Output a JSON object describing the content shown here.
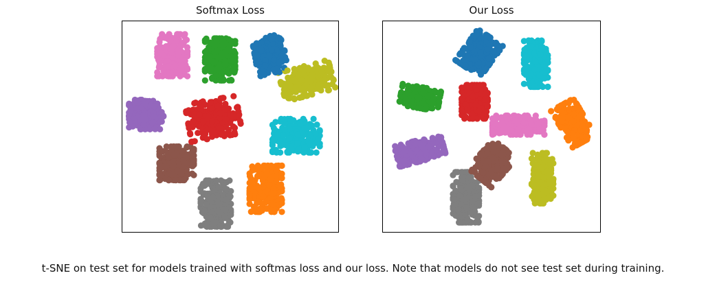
{
  "caption": "t-SNE on test set for models trained with softmas loss and our loss. Note that models do not see test set during training.",
  "palette": [
    "#1f77b4",
    "#ff7f0e",
    "#2ca02c",
    "#d62728",
    "#9467bd",
    "#8c564b",
    "#e377c2",
    "#7f7f7f",
    "#bcbd22",
    "#17becf"
  ],
  "chart_data": [
    {
      "type": "scatter",
      "title": "Softmax Loss",
      "xlabel": "",
      "ylabel": "",
      "grid": false,
      "axis_ticks": false,
      "xlim": [
        0,
        100
      ],
      "ylim": [
        0,
        100
      ],
      "clusters": [
        {
          "class_index": 0,
          "center": [
            68,
            84
          ],
          "spread": [
            7,
            9
          ],
          "angle": 10
        },
        {
          "class_index": 1,
          "center": [
            66,
            21
          ],
          "spread": [
            7.5,
            11
          ],
          "angle": 0
        },
        {
          "class_index": 2,
          "center": [
            45,
            82
          ],
          "spread": [
            7,
            10
          ],
          "angle": 0
        },
        {
          "class_index": 3,
          "center": [
            42,
            54
          ],
          "spread": [
            12,
            9
          ],
          "angle": 10
        },
        {
          "class_index": 4,
          "center": [
            11,
            56
          ],
          "spread": [
            8,
            7
          ],
          "angle": 0
        },
        {
          "class_index": 5,
          "center": [
            25,
            33
          ],
          "spread": [
            8,
            8
          ],
          "angle": 0
        },
        {
          "class_index": 6,
          "center": [
            23,
            84
          ],
          "spread": [
            7,
            10
          ],
          "angle": 0
        },
        {
          "class_index": 7,
          "center": [
            43,
            14
          ],
          "spread": [
            7,
            11
          ],
          "angle": 0
        },
        {
          "class_index": 8,
          "center": [
            85,
            72
          ],
          "spread": [
            12,
            7
          ],
          "angle": 15
        },
        {
          "class_index": 9,
          "center": [
            80,
            46
          ],
          "spread": [
            11,
            8
          ],
          "angle": 0
        }
      ]
    },
    {
      "type": "scatter",
      "title": "Our Loss",
      "xlabel": "",
      "ylabel": "",
      "grid": false,
      "axis_ticks": false,
      "xlim": [
        0,
        100
      ],
      "ylim": [
        0,
        100
      ],
      "clusters": [
        {
          "class_index": 0,
          "center": [
            44,
            85
          ],
          "spread": [
            7,
            9
          ],
          "angle": -35
        },
        {
          "class_index": 1,
          "center": [
            87,
            52
          ],
          "spread": [
            6,
            10
          ],
          "angle": 30
        },
        {
          "class_index": 2,
          "center": [
            17,
            64
          ],
          "spread": [
            9,
            5
          ],
          "angle": -10
        },
        {
          "class_index": 3,
          "center": [
            42,
            62
          ],
          "spread": [
            6,
            8
          ],
          "angle": 0
        },
        {
          "class_index": 4,
          "center": [
            17,
            39
          ],
          "spread": [
            11,
            5
          ],
          "angle": 15
        },
        {
          "class_index": 5,
          "center": [
            50,
            33
          ],
          "spread": [
            7,
            9
          ],
          "angle": -40
        },
        {
          "class_index": 6,
          "center": [
            62,
            51
          ],
          "spread": [
            12,
            4.5
          ],
          "angle": 0
        },
        {
          "class_index": 7,
          "center": [
            38,
            17
          ],
          "spread": [
            6,
            12
          ],
          "angle": 0
        },
        {
          "class_index": 8,
          "center": [
            73,
            26
          ],
          "spread": [
            5,
            12
          ],
          "angle": 0
        },
        {
          "class_index": 9,
          "center": [
            70,
            80
          ],
          "spread": [
            5.5,
            11
          ],
          "angle": 0
        }
      ]
    }
  ]
}
